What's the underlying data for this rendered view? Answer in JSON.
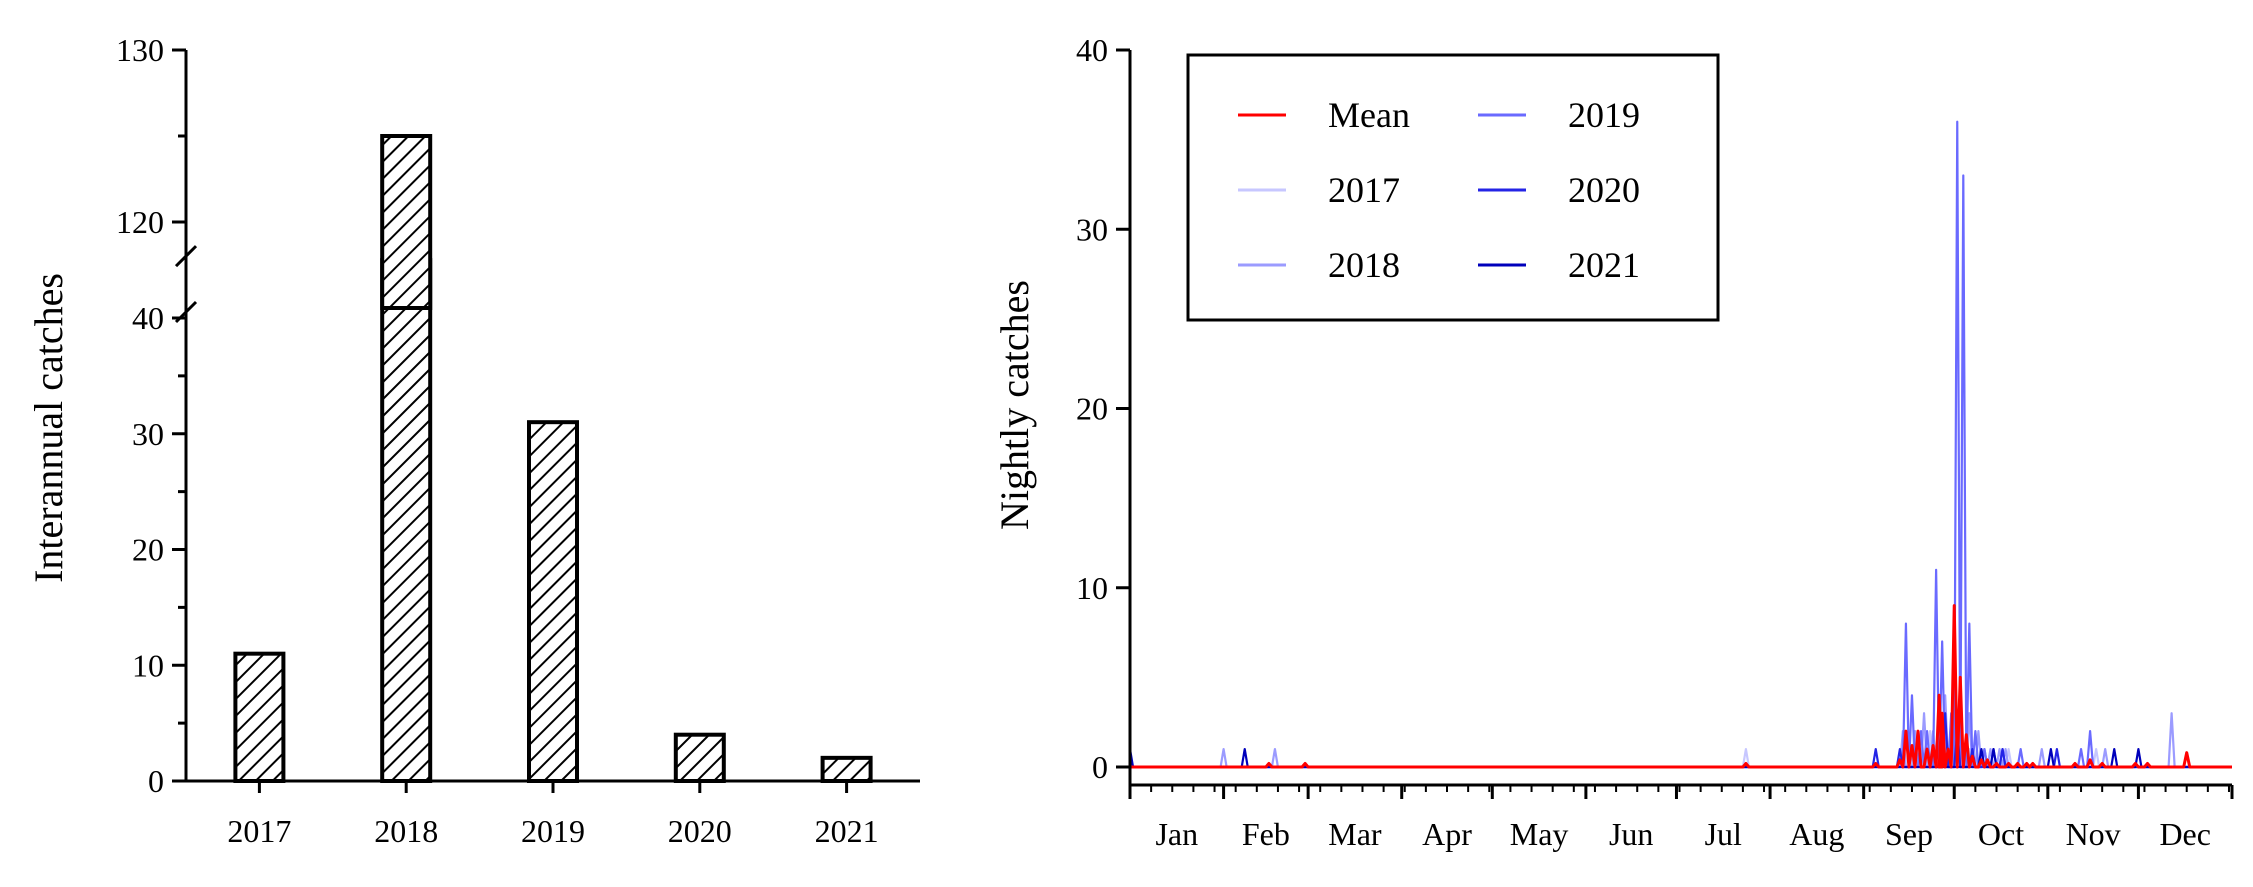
{
  "chart_data": [
    {
      "type": "bar",
      "categories": [
        "2017",
        "2018",
        "2019",
        "2020",
        "2021"
      ],
      "values": [
        11,
        125,
        31,
        4,
        2
      ],
      "xlabel": "",
      "ylabel": "Interannual catches",
      "ylim": [
        0,
        130
      ],
      "y_axis_break": [
        45,
        115
      ],
      "yticks_lower": [
        "0",
        "10",
        "20",
        "30",
        "40"
      ],
      "yticks_upper": [
        "120",
        "130"
      ],
      "bar_fill": "diagonal-hatch",
      "grid": false
    },
    {
      "type": "line",
      "ylabel": "Nightly catches",
      "xlabel": "",
      "ylim": [
        0,
        40
      ],
      "yticks": [
        "0",
        "10",
        "20",
        "30",
        "40"
      ],
      "months": [
        "Jan",
        "Feb",
        "Mar",
        "Apr",
        "May",
        "Jun",
        "Jul",
        "Aug",
        "Sep",
        "Oct",
        "Nov",
        "Dec"
      ],
      "x_unit": "day of year",
      "legend_position": "top-left",
      "legend_labels": [
        "Mean",
        "2017",
        "2018",
        "2019",
        "2020",
        "2021"
      ],
      "grid": false,
      "series": [
        {
          "name": "Mean",
          "color": "#ff0000",
          "points": [
            [
              46,
              0.2
            ],
            [
              58,
              0.2
            ],
            [
              204,
              0.2
            ],
            [
              247,
              0.2
            ],
            [
              255,
              0.4
            ],
            [
              257,
              2
            ],
            [
              259,
              1.2
            ],
            [
              261,
              2
            ],
            [
              264,
              1
            ],
            [
              266,
              1.2
            ],
            [
              268,
              4
            ],
            [
              269,
              3
            ],
            [
              271,
              1
            ],
            [
              273,
              9
            ],
            [
              275,
              5
            ],
            [
              277,
              1.8
            ],
            [
              279,
              0.6
            ],
            [
              282,
              0.4
            ],
            [
              284,
              0.4
            ],
            [
              287,
              0.2
            ],
            [
              291,
              0.2
            ],
            [
              294,
              0.2
            ],
            [
              297,
              0.2
            ],
            [
              299,
              0.2
            ],
            [
              313,
              0.2
            ],
            [
              318,
              0.4
            ],
            [
              322,
              0.2
            ],
            [
              333,
              0.2
            ],
            [
              337,
              0.2
            ],
            [
              350,
              0.8
            ]
          ]
        },
        {
          "name": "2017",
          "color": "#c7c7ff",
          "points": [
            [
              204,
              1
            ],
            [
              256,
              1
            ],
            [
              265,
              2
            ],
            [
              267,
              1
            ],
            [
              278,
              1
            ],
            [
              283,
              1
            ],
            [
              286,
              1
            ],
            [
              291,
              1
            ],
            [
              320,
              1
            ]
          ]
        },
        {
          "name": "2018",
          "color": "#9b9bff",
          "points": [
            [
              31,
              1
            ],
            [
              48,
              1
            ],
            [
              256,
              2
            ],
            [
              260,
              2
            ],
            [
              263,
              3
            ],
            [
              266,
              2
            ],
            [
              270,
              4
            ],
            [
              274,
              3
            ],
            [
              278,
              3
            ],
            [
              281,
              2
            ],
            [
              283,
              1
            ],
            [
              285,
              1
            ],
            [
              288,
              1
            ],
            [
              290,
              1
            ],
            [
              302,
              1
            ],
            [
              323,
              1
            ],
            [
              345,
              3
            ]
          ]
        },
        {
          "name": "2019",
          "color": "#6a6aff",
          "points": [
            [
              257,
              8
            ],
            [
              259,
              4
            ],
            [
              262,
              2
            ],
            [
              264,
              2
            ],
            [
              267,
              11
            ],
            [
              269,
              7
            ],
            [
              272,
              3
            ],
            [
              274,
              36
            ],
            [
              276,
              33
            ],
            [
              278,
              8
            ],
            [
              280,
              2
            ],
            [
              283,
              1
            ],
            [
              286,
              1
            ],
            [
              289,
              1
            ],
            [
              295,
              1
            ],
            [
              315,
              1
            ],
            [
              318,
              2
            ]
          ]
        },
        {
          "name": "2020",
          "color": "#2424e6",
          "points": [
            [
              247,
              1
            ],
            [
              255,
              1
            ],
            [
              261,
              2
            ],
            [
              270,
              3
            ],
            [
              274,
              2
            ],
            [
              279,
              1
            ],
            [
              289,
              1
            ],
            [
              307,
              1
            ]
          ]
        },
        {
          "name": "2021",
          "color": "#0000bb",
          "points": [
            [
              0,
              1
            ],
            [
              38,
              1
            ],
            [
              282,
              1
            ],
            [
              286,
              1
            ],
            [
              305,
              1
            ],
            [
              326,
              1
            ],
            [
              334,
              1
            ]
          ]
        }
      ]
    }
  ]
}
